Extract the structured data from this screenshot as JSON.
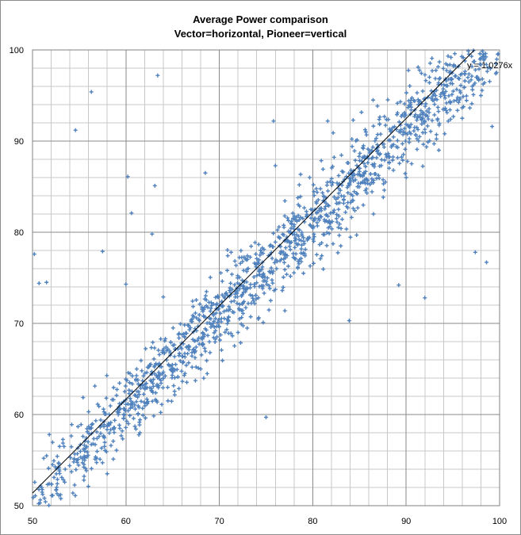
{
  "chart_data": {
    "type": "scatter",
    "title": [
      "Average Power comparison",
      "Vector=horizontal, Pioneer=vertical"
    ],
    "xlabel": "",
    "ylabel": "",
    "xlim": [
      50,
      100
    ],
    "ylim": [
      50,
      100
    ],
    "x_ticks": [
      "50",
      "60",
      "70",
      "80",
      "90",
      "100"
    ],
    "y_ticks": [
      "50",
      "60",
      "70",
      "80",
      "90",
      "100"
    ],
    "grid": {
      "major": true,
      "minor": true
    },
    "marker": "plus",
    "marker_color": "#4f81bd",
    "point_count": 1550,
    "trendline": {
      "slope": 1.0276,
      "intercept": 0,
      "label": "y = 1.0276x",
      "color": "#000000"
    },
    "points": [
      [
        50.2,
        77.6
      ],
      [
        50.7,
        74.4
      ],
      [
        51.5,
        74.5
      ],
      [
        54.6,
        91.2
      ],
      [
        56.3,
        95.4
      ],
      [
        57.5,
        77.9
      ],
      [
        60.0,
        74.3
      ],
      [
        60.2,
        86.1
      ],
      [
        60.6,
        82.1
      ],
      [
        62.8,
        79.8
      ],
      [
        63.1,
        85.1
      ],
      [
        63.4,
        97.2
      ],
      [
        64.0,
        72.9
      ],
      [
        68.5,
        86.5
      ],
      [
        75.0,
        59.7
      ],
      [
        75.8,
        92.2
      ],
      [
        76.0,
        87.3
      ],
      [
        81.6,
        92.2
      ],
      [
        83.9,
        70.3
      ],
      [
        89.2,
        74.2
      ],
      [
        92.0,
        72.8
      ],
      [
        97.4,
        77.8
      ],
      [
        98.6,
        76.7
      ],
      [
        99.2,
        91.6
      ],
      [
        99.6,
        97.4
      ],
      [
        51.2,
        55.2
      ],
      [
        51.8,
        57.8
      ],
      [
        52.3,
        53.1
      ],
      [
        52.9,
        56.5
      ],
      [
        53.5,
        54.0
      ],
      [
        54.2,
        58.9
      ],
      [
        54.8,
        55.7
      ],
      [
        55.4,
        57.6
      ],
      [
        56.0,
        60.3
      ],
      [
        56.7,
        55.1
      ],
      [
        57.3,
        59.4
      ],
      [
        57.9,
        61.8
      ],
      [
        58.4,
        56.6
      ],
      [
        59.0,
        62.1
      ],
      [
        59.6,
        58.2
      ],
      [
        60.4,
        63.5
      ],
      [
        61.0,
        60.6
      ],
      [
        61.7,
        64.8
      ],
      [
        62.3,
        61.2
      ],
      [
        63.0,
        66.1
      ],
      [
        63.6,
        63.9
      ],
      [
        64.3,
        67.4
      ],
      [
        65.0,
        65.1
      ],
      [
        65.7,
        68.9
      ],
      [
        66.3,
        66.7
      ],
      [
        67.0,
        70.2
      ],
      [
        67.8,
        68.4
      ],
      [
        68.4,
        71.7
      ],
      [
        69.1,
        69.6
      ],
      [
        69.8,
        72.9
      ],
      [
        70.5,
        71.3
      ],
      [
        71.2,
        74.4
      ],
      [
        71.9,
        72.2
      ],
      [
        72.6,
        75.8
      ],
      [
        73.3,
        73.9
      ],
      [
        74.0,
        77.1
      ],
      [
        74.8,
        75.2
      ],
      [
        75.5,
        78.6
      ],
      [
        76.2,
        76.8
      ],
      [
        76.9,
        79.7
      ],
      [
        77.6,
        78.1
      ],
      [
        78.3,
        81.2
      ],
      [
        79.0,
        79.4
      ],
      [
        79.8,
        82.5
      ],
      [
        80.5,
        80.7
      ],
      [
        81.2,
        83.9
      ],
      [
        81.9,
        82.1
      ],
      [
        82.6,
        85.4
      ],
      [
        83.3,
        83.6
      ],
      [
        84.1,
        86.8
      ],
      [
        84.8,
        85.0
      ],
      [
        85.5,
        88.3
      ],
      [
        86.2,
        86.4
      ],
      [
        86.9,
        89.6
      ],
      [
        87.7,
        87.9
      ],
      [
        88.4,
        91.2
      ],
      [
        89.1,
        89.3
      ],
      [
        89.8,
        92.7
      ],
      [
        90.5,
        90.8
      ],
      [
        91.3,
        94.0
      ],
      [
        92.0,
        92.2
      ],
      [
        92.7,
        95.5
      ],
      [
        93.4,
        93.7
      ],
      [
        94.2,
        96.8
      ],
      [
        94.9,
        95.1
      ],
      [
        95.6,
        98.2
      ],
      [
        96.3,
        96.6
      ],
      [
        97.0,
        99.3
      ],
      [
        97.8,
        97.9
      ],
      [
        98.5,
        99.6
      ],
      [
        53.0,
        51.2
      ],
      [
        55.5,
        52.8
      ],
      [
        58.0,
        53.5
      ],
      [
        61.5,
        58.0
      ],
      [
        64.5,
        61.5
      ],
      [
        68.0,
        65.0
      ],
      [
        72.0,
        69.0
      ],
      [
        75.5,
        72.5
      ],
      [
        79.0,
        75.5
      ],
      [
        83.0,
        78.5
      ],
      [
        86.5,
        82.0
      ],
      [
        90.0,
        86.0
      ],
      [
        93.5,
        89.0
      ],
      [
        96.0,
        92.5
      ],
      [
        98.0,
        95.0
      ]
    ]
  }
}
